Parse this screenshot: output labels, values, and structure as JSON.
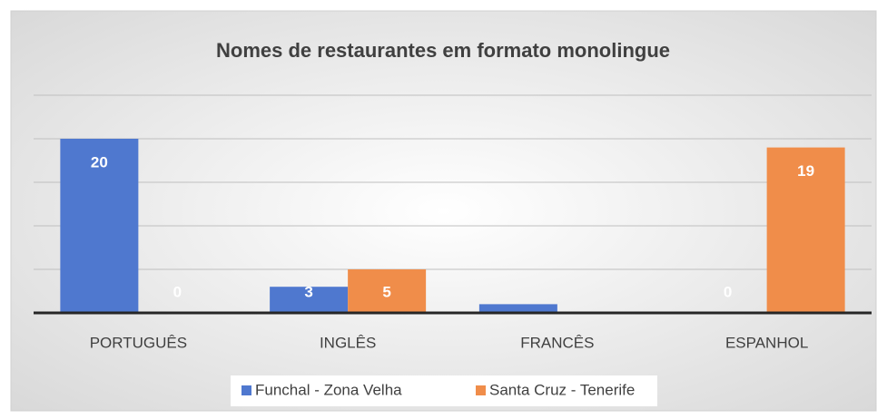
{
  "chart_data": {
    "type": "bar",
    "title": "Nomes de restaurantes em formato monolingue",
    "categories": [
      "PORTUGUÊS",
      "INGLÊS",
      "FRANCÊS",
      "ESPANHOL"
    ],
    "series": [
      {
        "name": "Funchal - Zona Velha",
        "color": "#4f78cf",
        "values": [
          20,
          3,
          1,
          0
        ],
        "value_labels": [
          "20",
          "3",
          null,
          "0"
        ]
      },
      {
        "name": "Santa Cruz - Tenerife",
        "color": "#f08d4a",
        "values": [
          0,
          5,
          null,
          19
        ],
        "value_labels": [
          "0",
          "5",
          null,
          "19"
        ]
      }
    ],
    "ylim": [
      0,
      25
    ],
    "yticks": [
      0,
      5,
      10,
      15,
      20,
      25
    ],
    "grid": true,
    "legend": "bottom"
  }
}
